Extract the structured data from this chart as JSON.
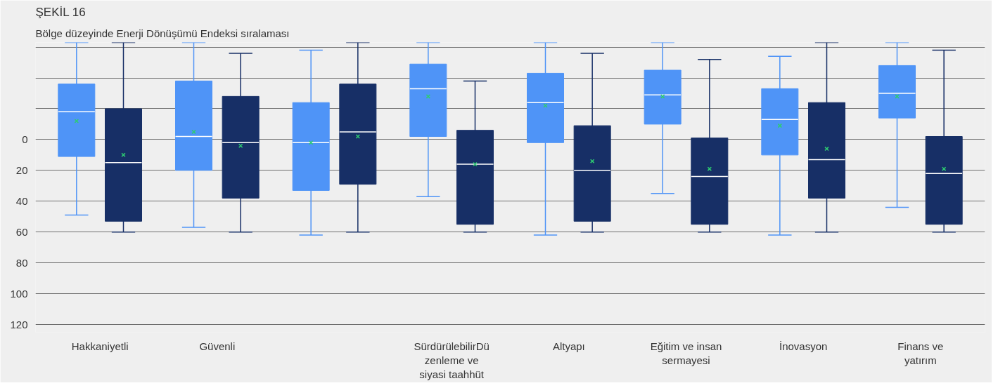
{
  "chart_data": {
    "type": "box",
    "title": "ŞEKİL 16",
    "subtitle": "Bölge düzeyinde Enerji Dönüşümü Endeksi sıralaması",
    "categories": [
      "Hakkaniyetli",
      "Güvenli",
      null,
      "SürdürülebilirDüzenleme ve siyasi taahhüt",
      "Altyapı",
      "Eğitim ve insan sermayesi",
      "İnovasyon",
      "Finans ve yatırım"
    ],
    "ylim": [
      125,
      -63
    ],
    "yticks": [
      {
        "value": -60,
        "label": null
      },
      {
        "value": -40,
        "label": null
      },
      {
        "value": -20,
        "label": null
      },
      0,
      20,
      40,
      60,
      80,
      100,
      120
    ],
    "grid": "y",
    "series": [
      {
        "color": "#4f94f7",
        "boxes": [
          {
            "low": -63,
            "q1": -36,
            "median": -18,
            "q3": 11,
            "high": 49,
            "mean": -12
          },
          {
            "low": -63,
            "q1": -38,
            "median": -2,
            "q3": 20,
            "high": 57,
            "mean": -5
          },
          {
            "low": -58,
            "q1": -24,
            "median": 2,
            "q3": 33,
            "high": 62,
            "mean": 2
          },
          {
            "low": -63,
            "q1": -49,
            "median": -33,
            "q3": -2,
            "high": 37,
            "mean": -28
          },
          {
            "low": -63,
            "q1": -43,
            "median": -24,
            "q3": 2,
            "high": 62,
            "mean": -22
          },
          {
            "low": -63,
            "q1": -45,
            "median": -29,
            "q3": -10,
            "high": 35,
            "mean": -28
          },
          {
            "low": -54,
            "q1": -33,
            "median": -13,
            "q3": 10,
            "high": 62,
            "mean": -9
          },
          {
            "low": -63,
            "q1": -48,
            "median": -30,
            "q3": -14,
            "high": 44,
            "mean": -28
          }
        ]
      },
      {
        "color": "#172f66",
        "boxes": [
          {
            "low": -63,
            "q1": -20,
            "median": 15,
            "q3": 53,
            "high": 60,
            "mean": 10
          },
          {
            "low": -56,
            "q1": -28,
            "median": 2,
            "q3": 38,
            "high": 60,
            "mean": 4
          },
          {
            "low": -63,
            "q1": -36,
            "median": -5,
            "q3": 29,
            "high": 60,
            "mean": -2
          },
          {
            "low": -38,
            "q1": -6,
            "median": 16,
            "q3": 55,
            "high": 60,
            "mean": 16
          },
          {
            "low": -56,
            "q1": -9,
            "median": 20,
            "q3": 53,
            "high": 60,
            "mean": 14
          },
          {
            "low": -52,
            "q1": -1,
            "median": 24,
            "q3": 55,
            "high": 60,
            "mean": 19
          },
          {
            "low": -63,
            "q1": -24,
            "median": 13,
            "q3": 38,
            "high": 60,
            "mean": 6
          },
          {
            "low": -58,
            "q1": -2,
            "median": 22,
            "q3": 55,
            "high": 60,
            "mean": 19
          }
        ]
      }
    ]
  }
}
